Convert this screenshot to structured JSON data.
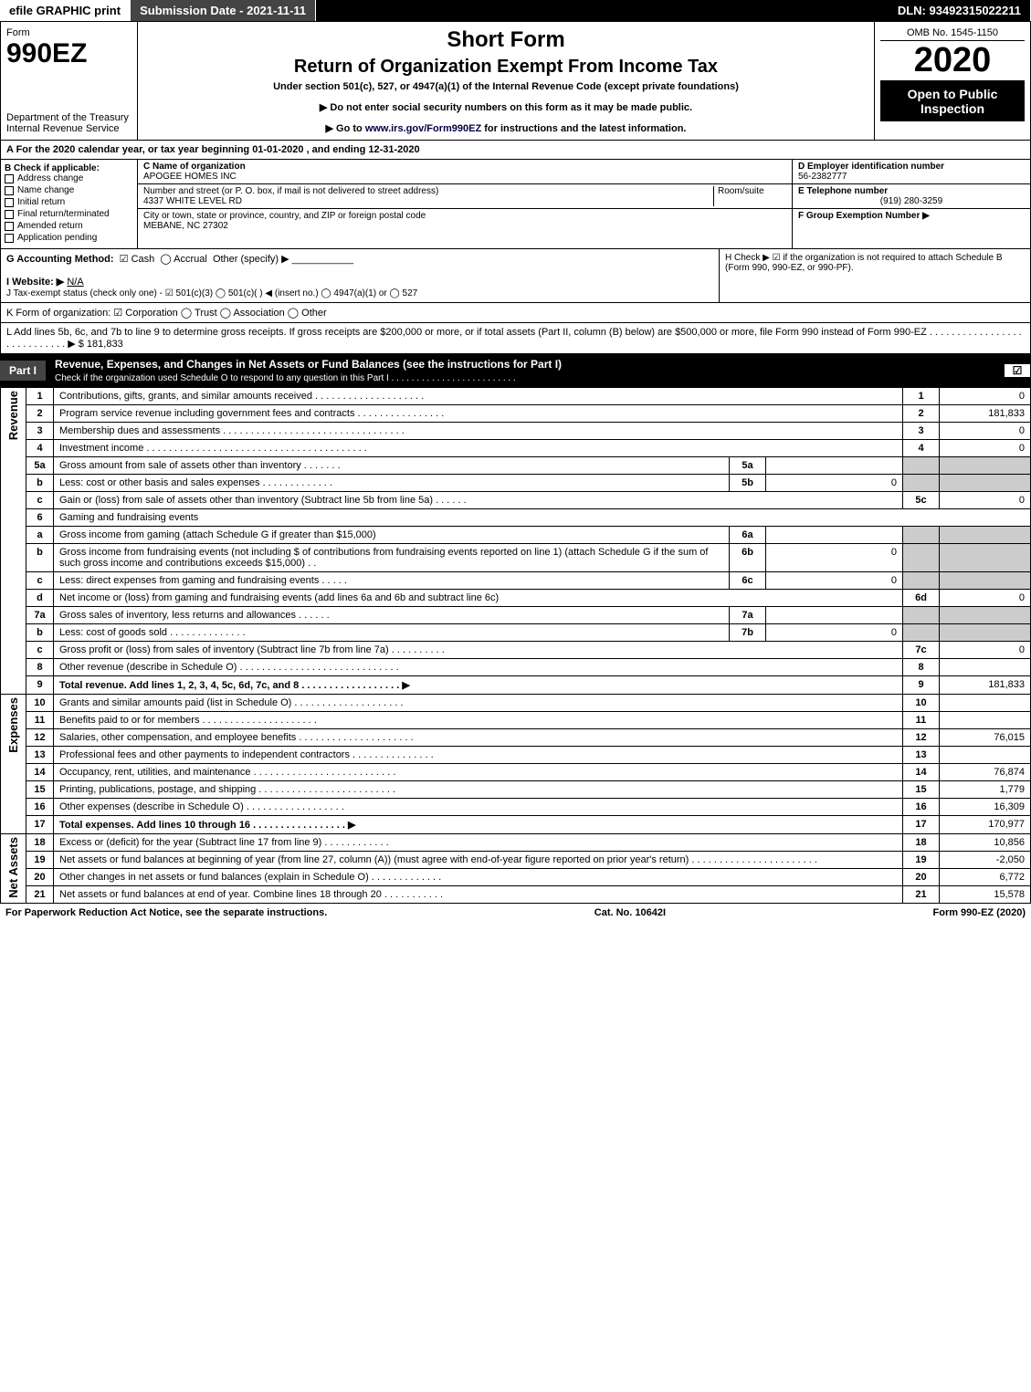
{
  "colors": {
    "header_bg": "#000000",
    "header_fg": "#ffffff",
    "grey_cell": "#cccccc"
  },
  "topbar": {
    "efile": "efile GRAPHIC print",
    "submission_label": "Submission Date - 2021-11-11",
    "dln_label": "DLN: 93492315022211"
  },
  "header": {
    "form_word": "Form",
    "form_number": "990EZ",
    "dept": "Department of the Treasury\nInternal Revenue Service",
    "short_form": "Short Form",
    "return_title": "Return of Organization Exempt From Income Tax",
    "under_section": "Under section 501(c), 527, or 4947(a)(1) of the Internal Revenue Code (except private foundations)",
    "warn_ssn": "▶ Do not enter social security numbers on this form as it may be made public.",
    "goto": "▶ Go to www.irs.gov/Form990EZ for instructions and the latest information.",
    "goto_url": "www.irs.gov/Form990EZ",
    "omb": "OMB No. 1545-1150",
    "year": "2020",
    "open_to": "Open to Public Inspection"
  },
  "sectionA": "A For the 2020 calendar year, or tax year beginning 01-01-2020 , and ending 12-31-2020",
  "sectionB": {
    "label": "B Check if applicable:",
    "options": [
      "Address change",
      "Name change",
      "Initial return",
      "Final return/terminated",
      "Amended return",
      "Application pending"
    ]
  },
  "sectionC": {
    "name_label": "C Name of organization",
    "name_value": "APOGEE HOMES INC",
    "street_label": "Number and street (or P. O. box, if mail is not delivered to street address)",
    "room_label": "Room/suite",
    "street_value": "4337 WHITE LEVEL RD",
    "city_label": "City or town, state or province, country, and ZIP or foreign postal code",
    "city_value": "MEBANE, NC  27302"
  },
  "sectionD": {
    "label": "D Employer identification number",
    "value": "56-2382777"
  },
  "sectionE": {
    "label": "E Telephone number",
    "value": "(919) 280-3259"
  },
  "sectionF": {
    "label": "F Group Exemption Number  ▶",
    "value": ""
  },
  "sectionG": {
    "label": "G Accounting Method:",
    "cash": "Cash",
    "accrual": "Accrual",
    "other": "Other (specify) ▶"
  },
  "sectionH": {
    "label": "H  Check ▶ ☑ if the organization is not required to attach Schedule B (Form 990, 990-EZ, or 990-PF)."
  },
  "sectionI": {
    "label": "I Website: ▶",
    "value": "N/A"
  },
  "sectionJ": {
    "label": "J Tax-exempt status (check only one) - ☑ 501(c)(3)  ◯ 501(c)(  ) ◀ (insert no.)  ◯ 4947(a)(1) or  ◯ 527"
  },
  "sectionK": {
    "label": "K Form of organization:  ☑ Corporation   ◯ Trust   ◯ Association   ◯ Other"
  },
  "sectionL": {
    "label": "L Add lines 5b, 6c, and 7b to line 9 to determine gross receipts. If gross receipts are $200,000 or more, or if total assets (Part II, column (B) below) are $500,000 or more, file Form 990 instead of Form 990-EZ  . . . . . . . . . . . . . . . . . . . . . . . . . . . .  ▶ $ 181,833"
  },
  "part1": {
    "tab": "Part I",
    "title": "Revenue, Expenses, and Changes in Net Assets or Fund Balances (see the instructions for Part I)",
    "subtitle": "Check if the organization used Schedule O to respond to any question in this Part I . . . . . . . . . . . . . . . . . . . . . . . . .",
    "checked": "☑"
  },
  "sections": {
    "revenue_label": "Revenue",
    "expenses_label": "Expenses",
    "netassets_label": "Net Assets"
  },
  "lines": [
    {
      "n": "1",
      "desc": "Contributions, gifts, grants, and similar amounts received . . . . . . . . . . . . . . . . . . . .",
      "code": "1",
      "amt": "0"
    },
    {
      "n": "2",
      "desc": "Program service revenue including government fees and contracts . . . . . . . . . . . . . . . .",
      "code": "2",
      "amt": "181,833"
    },
    {
      "n": "3",
      "desc": "Membership dues and assessments . . . . . . . . . . . . . . . . . . . . . . . . . . . . . . . . .",
      "code": "3",
      "amt": "0"
    },
    {
      "n": "4",
      "desc": "Investment income . . . . . . . . . . . . . . . . . . . . . . . . . . . . . . . . . . . . . . . .",
      "code": "4",
      "amt": "0"
    },
    {
      "n": "5a",
      "desc": "Gross amount from sale of assets other than inventory  . . . . . . .",
      "sub": "5a",
      "subval": ""
    },
    {
      "n": "b",
      "desc": "Less: cost or other basis and sales expenses . . . . . . . . . . . . .",
      "sub": "5b",
      "subval": "0"
    },
    {
      "n": "c",
      "desc": "Gain or (loss) from sale of assets other than inventory (Subtract line 5b from line 5a)  . . . . . .",
      "code": "5c",
      "amt": "0"
    },
    {
      "n": "6",
      "desc": "Gaming and fundraising events"
    },
    {
      "n": "a",
      "desc": "Gross income from gaming (attach Schedule G if greater than $15,000)",
      "sub": "6a",
      "subval": ""
    },
    {
      "n": "b",
      "desc": "Gross income from fundraising events (not including $                    of contributions from fundraising events reported on line 1) (attach Schedule G if the sum of such gross income and contributions exceeds $15,000)    .  .",
      "sub": "6b",
      "subval": "0"
    },
    {
      "n": "c",
      "desc": "Less: direct expenses from gaming and fundraising events   . . . . .",
      "sub": "6c",
      "subval": "0"
    },
    {
      "n": "d",
      "desc": "Net income or (loss) from gaming and fundraising events (add lines 6a and 6b and subtract line 6c)",
      "code": "6d",
      "amt": "0"
    },
    {
      "n": "7a",
      "desc": "Gross sales of inventory, less returns and allowances  . . . . . .",
      "sub": "7a",
      "subval": ""
    },
    {
      "n": "b",
      "desc": "Less: cost of goods sold        .  .  .  .  .  .  .  .  .  .  .  .  .  .",
      "sub": "7b",
      "subval": "0"
    },
    {
      "n": "c",
      "desc": "Gross profit or (loss) from sales of inventory (Subtract line 7b from line 7a)  . . . . . . . . . .",
      "code": "7c",
      "amt": "0"
    },
    {
      "n": "8",
      "desc": "Other revenue (describe in Schedule O) . . . . . . . . . . . . . . . . . . . . . . . . . . . . .",
      "code": "8",
      "amt": ""
    },
    {
      "n": "9",
      "desc": "Total revenue. Add lines 1, 2, 3, 4, 5c, 6d, 7c, and 8  . . . . . . . . . . . . . . . . . .   ▶",
      "code": "9",
      "amt": "181,833",
      "bold": true
    }
  ],
  "expenses": [
    {
      "n": "10",
      "desc": "Grants and similar amounts paid (list in Schedule O) . . . . . . . . . . . . . . . . . . . .",
      "code": "10",
      "amt": ""
    },
    {
      "n": "11",
      "desc": "Benefits paid to or for members        .  .  .  .  .  .  .  .  .  .  .  .  .  .  .  .  .  .  .  .  .",
      "code": "11",
      "amt": ""
    },
    {
      "n": "12",
      "desc": "Salaries, other compensation, and employee benefits . . . . . . . . . . . . . . . . . . . . .",
      "code": "12",
      "amt": "76,015"
    },
    {
      "n": "13",
      "desc": "Professional fees and other payments to independent contractors . . . . . . . . . . . . . . .",
      "code": "13",
      "amt": ""
    },
    {
      "n": "14",
      "desc": "Occupancy, rent, utilities, and maintenance . . . . . . . . . . . . . . . . . . . . . . . . . .",
      "code": "14",
      "amt": "76,874"
    },
    {
      "n": "15",
      "desc": "Printing, publications, postage, and shipping . . . . . . . . . . . . . . . . . . . . . . . . .",
      "code": "15",
      "amt": "1,779"
    },
    {
      "n": "16",
      "desc": "Other expenses (describe in Schedule O)       .  .  .  .  .  .  .  .  .  .  .  .  .  .  .  .  .  .",
      "code": "16",
      "amt": "16,309"
    },
    {
      "n": "17",
      "desc": "Total expenses. Add lines 10 through 16       .  .  .  .  .  .  .  .  .  .  .  .  .  .  .  .  .   ▶",
      "code": "17",
      "amt": "170,977",
      "bold": true
    }
  ],
  "netassets": [
    {
      "n": "18",
      "desc": "Excess or (deficit) for the year (Subtract line 17 from line 9)        .  .  .  .  .  .  .  .  .  .  .  .",
      "code": "18",
      "amt": "10,856"
    },
    {
      "n": "19",
      "desc": "Net assets or fund balances at beginning of year (from line 27, column (A)) (must agree with end-of-year figure reported on prior year's return) . . . . . . . . . . . . . . . . . . . . . . .",
      "code": "19",
      "amt": "-2,050"
    },
    {
      "n": "20",
      "desc": "Other changes in net assets or fund balances (explain in Schedule O) . . . . . . . . . . . . .",
      "code": "20",
      "amt": "6,772"
    },
    {
      "n": "21",
      "desc": "Net assets or fund balances at end of year. Combine lines 18 through 20 . . . . . . . . . . .",
      "code": "21",
      "amt": "15,578"
    }
  ],
  "footer": {
    "paperwork": "For Paperwork Reduction Act Notice, see the separate instructions.",
    "catno": "Cat. No. 10642I",
    "formref": "Form 990-EZ (2020)"
  }
}
